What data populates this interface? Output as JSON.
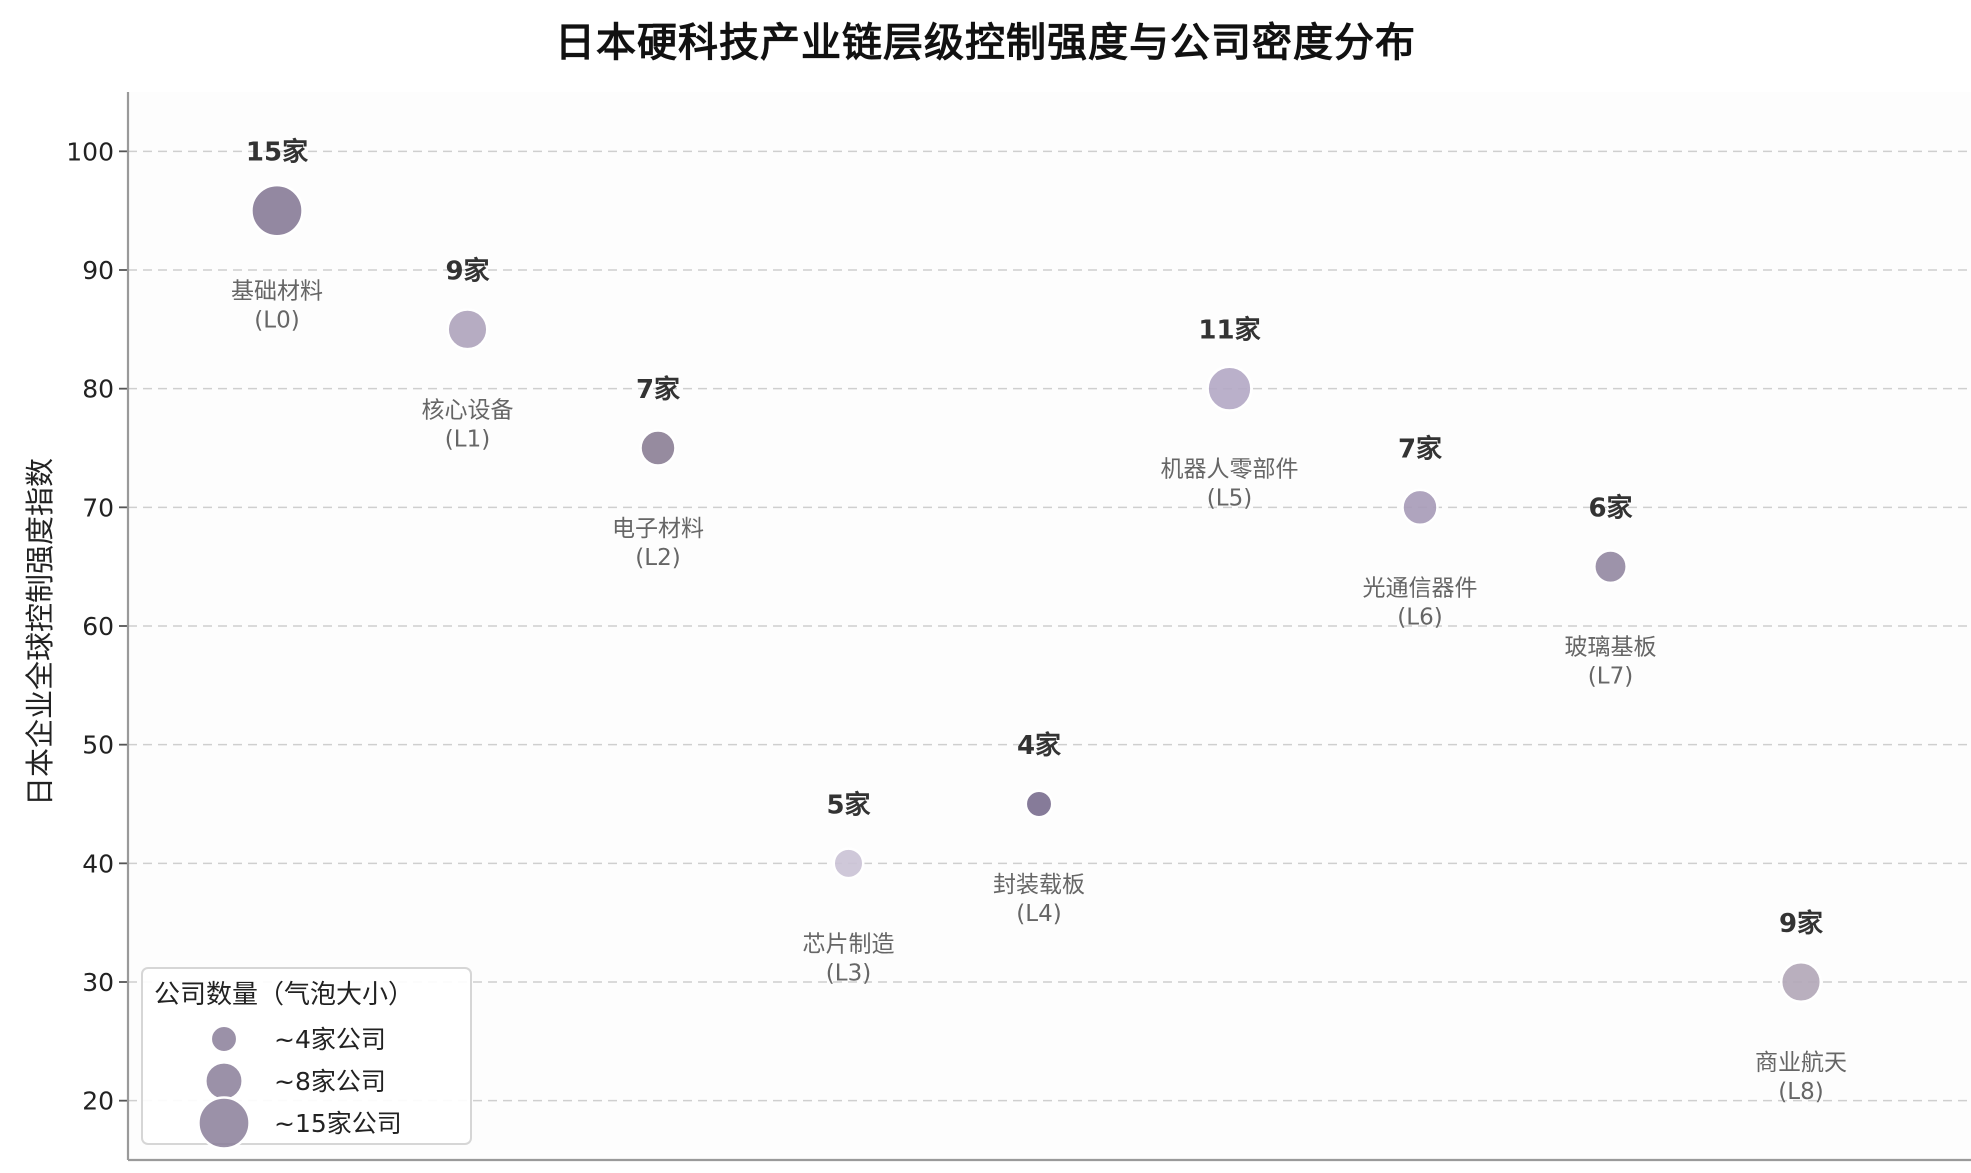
{
  "chart_data": {
    "type": "scatter",
    "title": "日本硬科技产业链层级控制强度与公司密度分布",
    "xlabel": "",
    "ylabel": "日本企业全球控制强度指数",
    "xlim": [
      -0.8,
      8.8
    ],
    "ylim": [
      15,
      105
    ],
    "yticks": [
      20,
      30,
      40,
      50,
      60,
      70,
      80,
      90,
      100
    ],
    "grid": true,
    "points": [
      {
        "x": 0,
        "y": 95,
        "count": 15,
        "count_label": "15家",
        "name": "基础材料",
        "level": "(L0)",
        "color": "#8a7e99"
      },
      {
        "x": 1,
        "y": 85,
        "count": 9,
        "count_label": "9家",
        "name": "核心设备",
        "level": "(L1)",
        "color": "#b0a5bd"
      },
      {
        "x": 2,
        "y": 75,
        "count": 7,
        "count_label": "7家",
        "name": "电子材料",
        "level": "(L2)",
        "color": "#8d8197"
      },
      {
        "x": 3,
        "y": 40,
        "count": 5,
        "count_label": "5家",
        "name": "芯片制造",
        "level": "(L3)",
        "color": "#cbc3d6"
      },
      {
        "x": 4,
        "y": 45,
        "count": 4,
        "count_label": "4家",
        "name": "封装载板",
        "level": "(L4)",
        "color": "#7c7090"
      },
      {
        "x": 5,
        "y": 80,
        "count": 11,
        "count_label": "11家",
        "name": "机器人零部件",
        "level": "(L5)",
        "color": "#b4a9c5"
      },
      {
        "x": 6,
        "y": 70,
        "count": 7,
        "count_label": "7家",
        "name": "光通信器件",
        "level": "(L6)",
        "color": "#a89cb8"
      },
      {
        "x": 7,
        "y": 65,
        "count": 6,
        "count_label": "6家",
        "name": "玻璃基板",
        "level": "(L7)",
        "color": "#958aa3"
      },
      {
        "x": 8,
        "y": 30,
        "count": 9,
        "count_label": "9家",
        "name": "商业航天",
        "level": "(L8)",
        "color": "#b3a8b9"
      }
    ],
    "legend": {
      "title": "公司数量（气泡大小）",
      "placement": "lower-left",
      "color": "#8a7e99",
      "entries": [
        {
          "count": 4,
          "label": "~4家公司"
        },
        {
          "count": 8,
          "label": "~8家公司"
        },
        {
          "count": 15,
          "label": "~15家公司"
        }
      ]
    }
  }
}
